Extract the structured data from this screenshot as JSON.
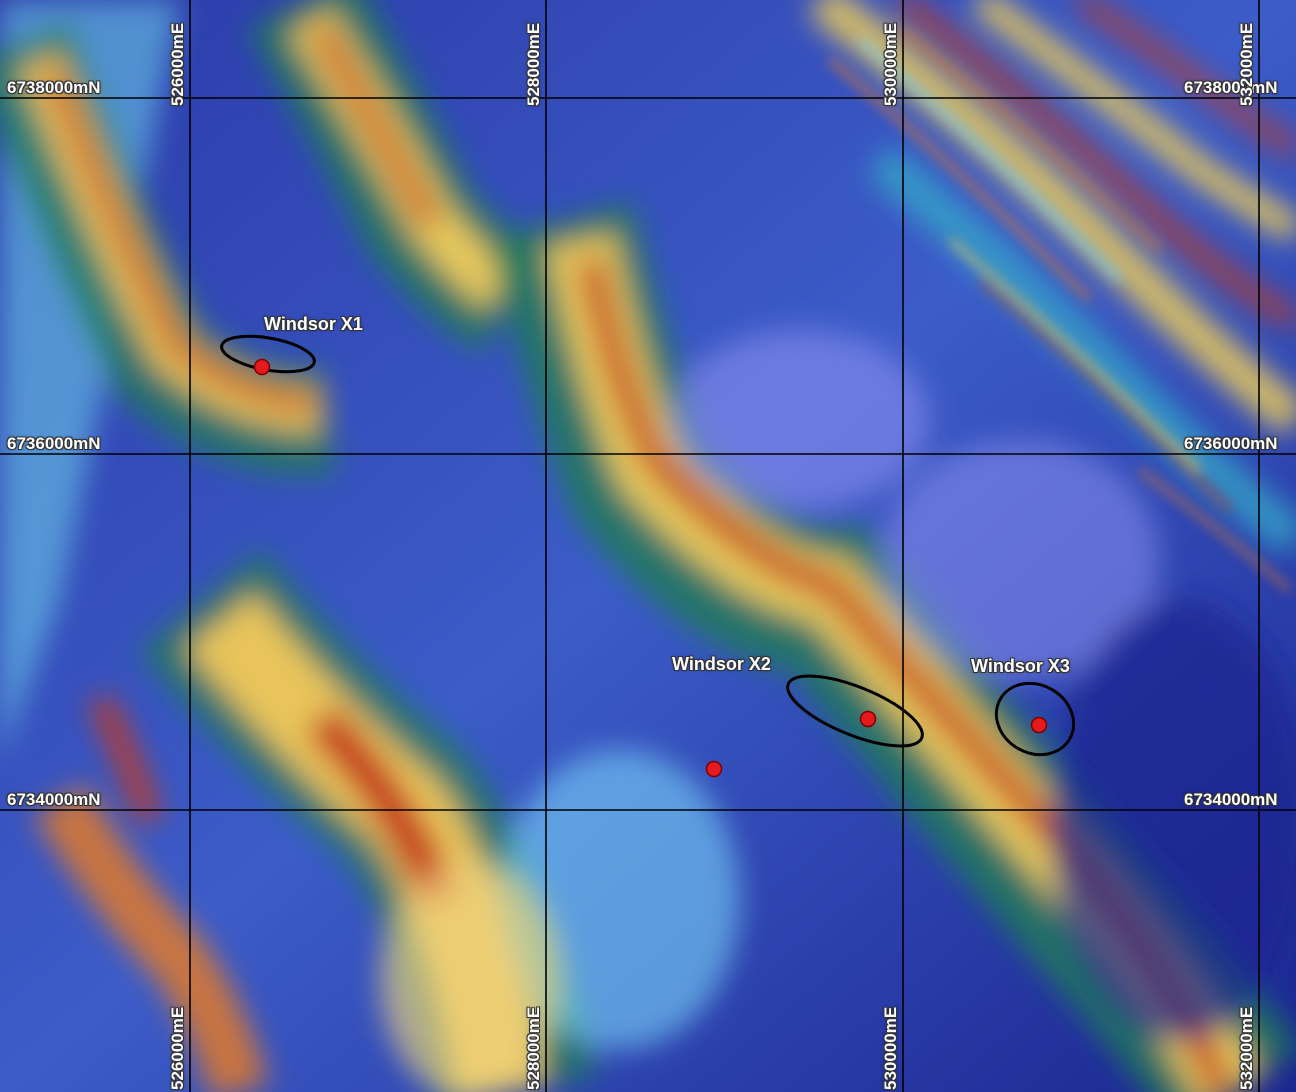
{
  "map": {
    "type": "magnetic survey image (colour-shaded, stretched)",
    "color_ramp": [
      "#1a1f8c",
      "#4a4fd0",
      "#8a8ff0",
      "#7fe0ff",
      "#32a8c8",
      "#1e7a5a",
      "#e8d26a",
      "#e07a2a",
      "#b8341c"
    ],
    "grid_line_color": "#000000",
    "target_marker_color": "#e41a1c",
    "target_outline_color": "#000000"
  },
  "grid": {
    "eastings": [
      "526000mE",
      "528000mE",
      "530000mE",
      "532000mE"
    ],
    "northings": [
      "6738000mN",
      "6736000mN",
      "6734000mN"
    ]
  },
  "targets": [
    {
      "name": "Windsor X1",
      "markers": 1
    },
    {
      "name": "Windsor X2",
      "markers": 2
    },
    {
      "name": "Windsor X3",
      "markers": 1
    }
  ]
}
